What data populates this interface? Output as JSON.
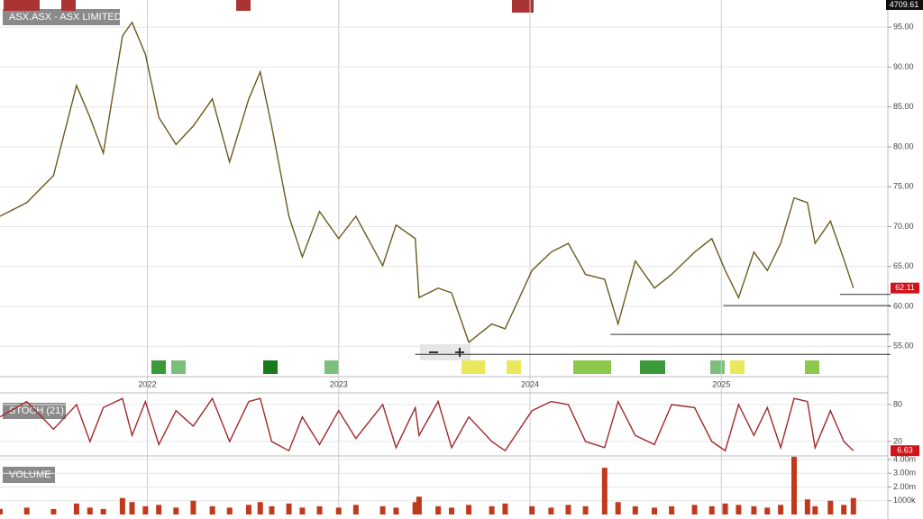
{
  "header": {
    "symbol": "ASX.ASX - ASX LIMITED",
    "index_value": "4709.61",
    "stoch_title": "STOCH (21)",
    "volume_title": "VOLUME"
  },
  "chart_data": [
    {
      "type": "line",
      "color": "#6b5a1e",
      "x": [
        2021.23,
        2021.37,
        2021.51,
        2021.63,
        2021.7,
        2021.77,
        2021.87,
        2021.92,
        2021.99,
        2022.06,
        2022.15,
        2022.24,
        2022.34,
        2022.43,
        2022.53,
        2022.59,
        2022.65,
        2022.74,
        2022.81,
        2022.9,
        2023.0,
        2023.09,
        2023.23,
        2023.3,
        2023.4,
        2023.42,
        2023.52,
        2023.59,
        2023.68,
        2023.8,
        2023.87,
        2024.01,
        2024.11,
        2024.2,
        2024.29,
        2024.39,
        2024.46,
        2024.55,
        2024.65,
        2024.74,
        2024.86,
        2024.95,
        2025.02,
        2025.09,
        2025.17,
        2025.24,
        2025.31,
        2025.38,
        2025.45,
        2025.49,
        2025.57,
        2025.64,
        2025.69
      ],
      "values": [
        71.3,
        73.0,
        76.4,
        87.7,
        83.7,
        79.2,
        93.9,
        95.6,
        91.6,
        83.7,
        80.3,
        82.6,
        86.0,
        78.1,
        86.0,
        89.4,
        82.6,
        71.3,
        66.2,
        71.9,
        68.5,
        71.3,
        65.1,
        70.2,
        68.5,
        61.1,
        62.3,
        61.7,
        55.5,
        57.8,
        57.2,
        64.5,
        66.8,
        67.9,
        64.0,
        63.4,
        57.8,
        65.7,
        62.3,
        64.0,
        66.8,
        68.5,
        64.5,
        61.1,
        66.8,
        64.5,
        67.9,
        73.6,
        73.0,
        67.9,
        70.7,
        65.9,
        62.3
      ],
      "last_label": "62.11",
      "levels": [
        {
          "value": 61.5,
          "start": 2025.62
        },
        {
          "value": 60.1,
          "start": 2025.01
        },
        {
          "value": 56.5,
          "start": 2024.42
        },
        {
          "value": 54.0,
          "start": 2023.4
        }
      ],
      "xlim": [
        2021.23,
        2025.87
      ],
      "xticks": [
        2022,
        2023,
        2024,
        2025
      ],
      "ylim": [
        51.2,
        98.4
      ],
      "yticks": [
        {
          "value": 55,
          "label": "55.00"
        },
        {
          "value": 60,
          "label": "60.00"
        },
        {
          "value": 65,
          "label": "65.00"
        },
        {
          "value": 70,
          "label": "70.00"
        },
        {
          "value": 75,
          "label": "75.00"
        },
        {
          "value": 80,
          "label": "80.00"
        },
        {
          "value": 85,
          "label": "85.00"
        },
        {
          "value": 90,
          "label": "90.00"
        },
        {
          "value": 95,
          "label": "95.00"
        }
      ],
      "grid": true
    },
    {
      "type": "line",
      "color": "#a0282a",
      "x": [
        2021.23,
        2021.37,
        2021.51,
        2021.63,
        2021.7,
        2021.77,
        2021.87,
        2021.92,
        2021.99,
        2022.06,
        2022.15,
        2022.24,
        2022.34,
        2022.43,
        2022.53,
        2022.59,
        2022.65,
        2022.74,
        2022.81,
        2022.9,
        2023.0,
        2023.09,
        2023.23,
        2023.3,
        2023.4,
        2023.42,
        2023.52,
        2023.59,
        2023.68,
        2023.8,
        2023.87,
        2024.01,
        2024.11,
        2024.2,
        2024.29,
        2024.39,
        2024.46,
        2024.55,
        2024.65,
        2024.74,
        2024.86,
        2024.95,
        2025.02,
        2025.09,
        2025.17,
        2025.24,
        2025.31,
        2025.38,
        2025.45,
        2025.49,
        2025.57,
        2025.64,
        2025.69
      ],
      "values": [
        60,
        85,
        40,
        80,
        20,
        75,
        90,
        30,
        85,
        15,
        70,
        45,
        90,
        20,
        85,
        90,
        20,
        5,
        60,
        15,
        70,
        25,
        80,
        10,
        75,
        30,
        85,
        10,
        60,
        20,
        5,
        70,
        85,
        80,
        20,
        10,
        85,
        30,
        15,
        80,
        75,
        20,
        5,
        80,
        30,
        75,
        10,
        90,
        85,
        10,
        70,
        20,
        5
      ],
      "last_label": "6.63",
      "xlim": [
        2021.23,
        2025.87
      ],
      "ylim": [
        -2,
        97.6
      ],
      "yticks": [
        20,
        80
      ],
      "grid": true
    },
    {
      "type": "bar",
      "color": "#c0391b",
      "x": [
        2021.23,
        2021.37,
        2021.51,
        2021.63,
        2021.7,
        2021.77,
        2021.87,
        2021.92,
        2021.99,
        2022.06,
        2022.15,
        2022.24,
        2022.34,
        2022.43,
        2022.53,
        2022.59,
        2022.65,
        2022.74,
        2022.81,
        2022.9,
        2023.0,
        2023.09,
        2023.23,
        2023.3,
        2023.4,
        2023.42,
        2023.52,
        2023.59,
        2023.68,
        2023.8,
        2023.87,
        2024.01,
        2024.11,
        2024.2,
        2024.29,
        2024.39,
        2024.46,
        2024.55,
        2024.65,
        2024.74,
        2024.86,
        2024.95,
        2025.02,
        2025.09,
        2025.17,
        2025.24,
        2025.31,
        2025.38,
        2025.45,
        2025.49,
        2025.57,
        2025.64,
        2025.69
      ],
      "values": [
        0.4,
        0.5,
        0.4,
        0.8,
        0.5,
        0.4,
        1.2,
        0.9,
        0.6,
        0.7,
        0.5,
        1.0,
        0.6,
        0.5,
        0.7,
        0.9,
        0.6,
        0.8,
        0.5,
        0.6,
        0.5,
        0.7,
        0.6,
        0.5,
        0.9,
        1.3,
        0.6,
        0.5,
        0.7,
        0.6,
        0.8,
        0.6,
        0.5,
        0.7,
        0.6,
        3.4,
        0.9,
        0.6,
        0.5,
        0.6,
        0.7,
        0.6,
        0.8,
        0.7,
        0.6,
        0.5,
        0.7,
        4.2,
        1.1,
        0.6,
        1.0,
        0.7,
        1.2
      ],
      "xlim": [
        2021.23,
        2025.87
      ],
      "ylim": [
        0,
        4.26
      ],
      "yticks": [
        {
          "value": 1,
          "label": "1000k"
        },
        {
          "value": 2,
          "label": "2.00m"
        },
        {
          "value": 3,
          "label": "3.00m"
        },
        {
          "value": 4,
          "label": "4.00m"
        }
      ],
      "grid": true
    }
  ]
}
